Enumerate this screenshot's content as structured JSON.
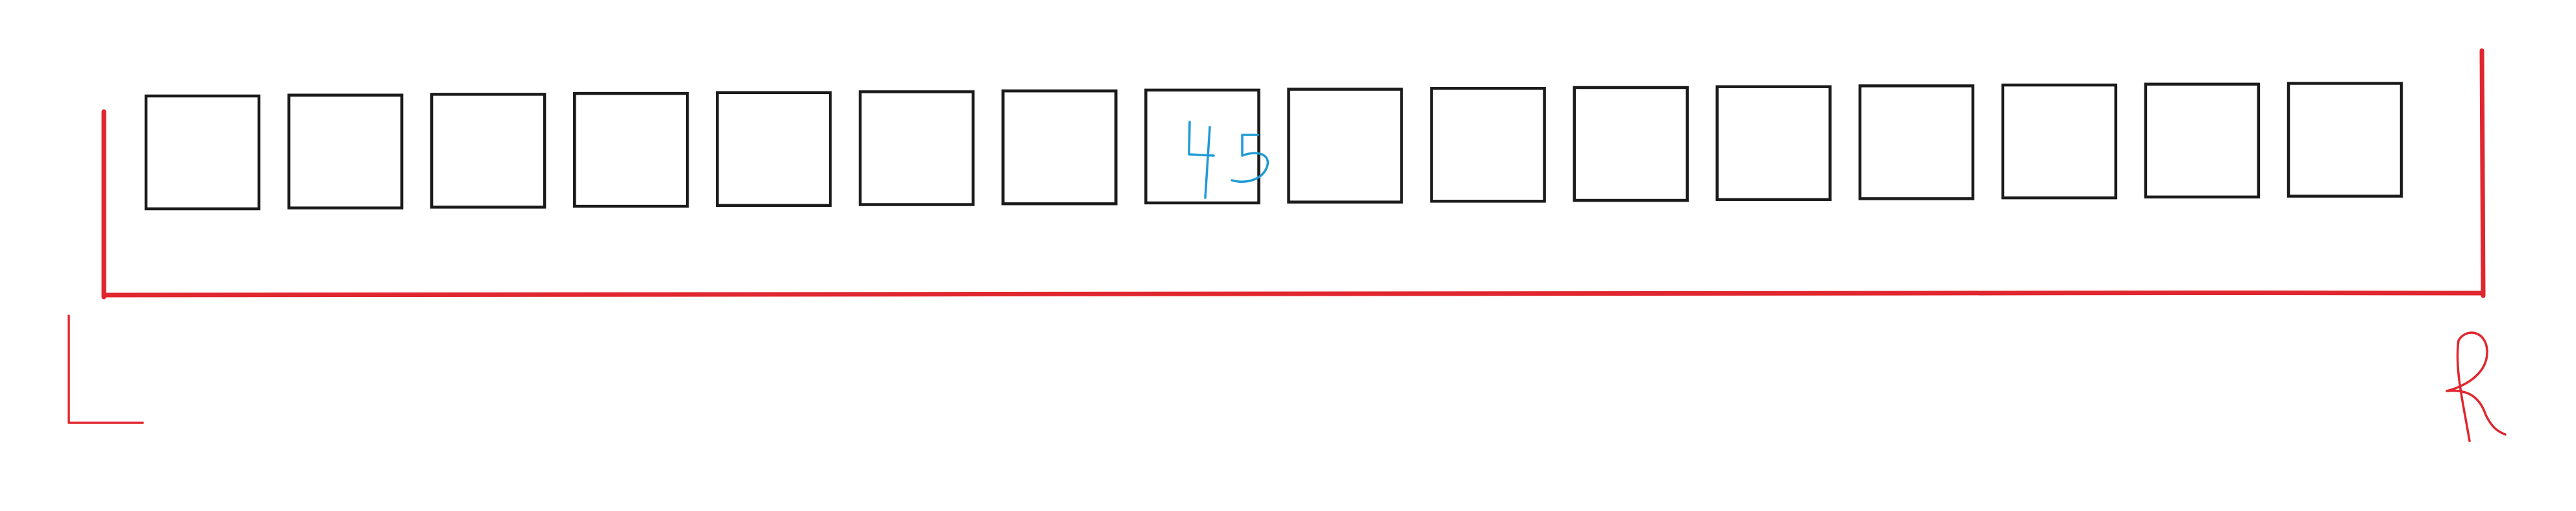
{
  "diagram": {
    "cell_count": 16,
    "highlighted_cell_index": 7,
    "cell_value": "45",
    "left_label": "L",
    "right_label": "R",
    "colors": {
      "cell_border": "#1a1a1a",
      "bracket": "#e0262e",
      "value_ink": "#1f9ad6",
      "background": "#ffffff"
    }
  }
}
